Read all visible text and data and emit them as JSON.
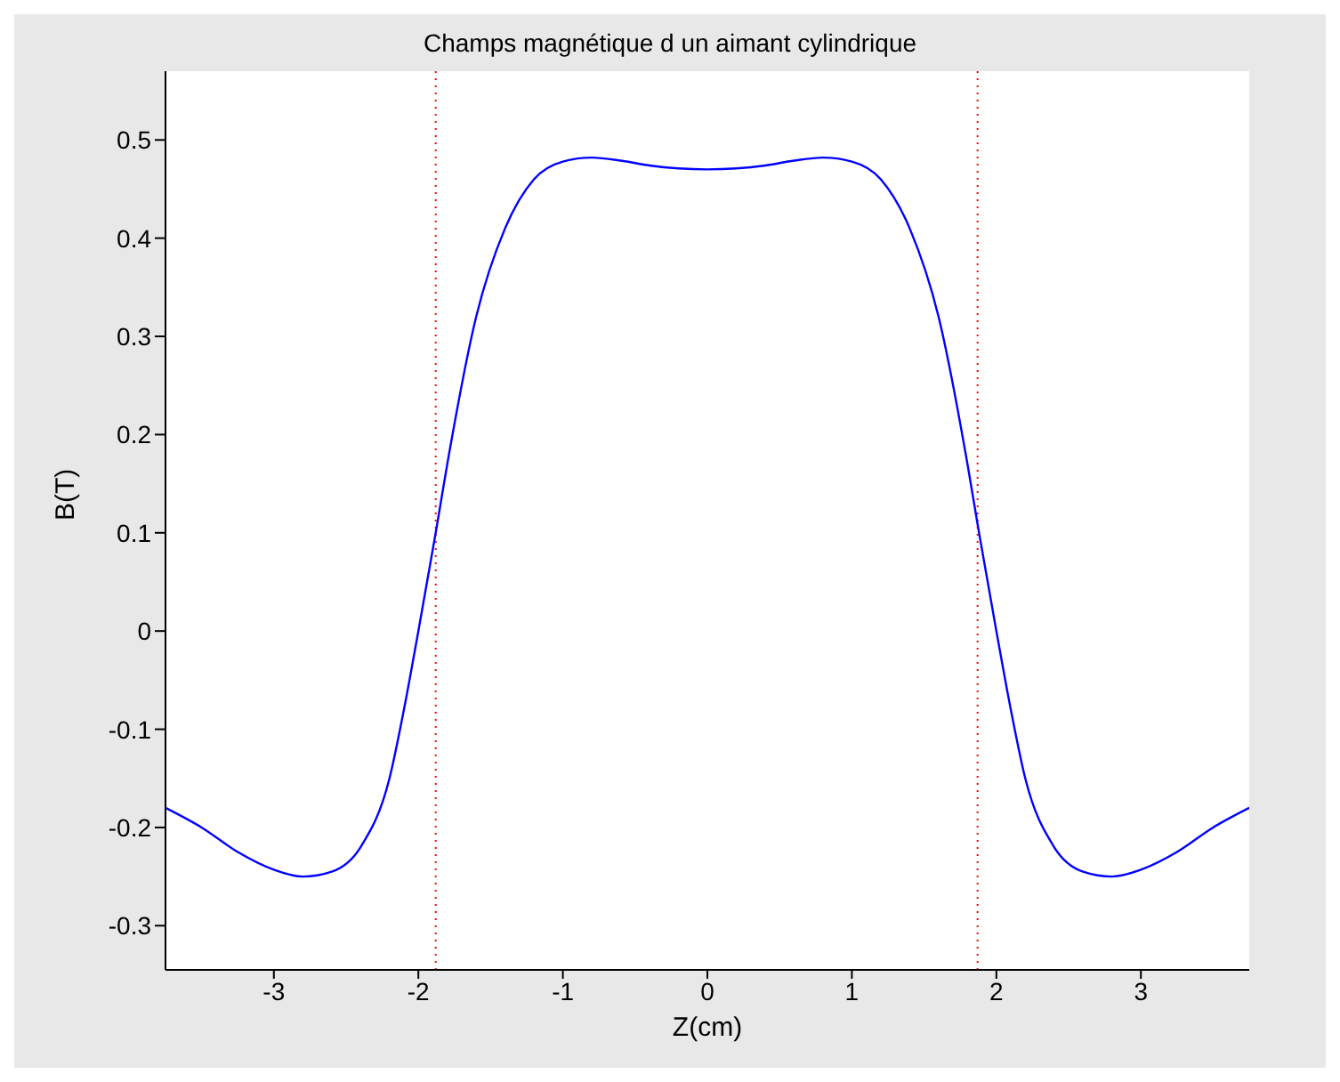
{
  "chart_data": {
    "type": "line",
    "title": "Champs magnétique d un aimant cylindrique",
    "xlabel": "Z(cm)",
    "ylabel": "B(T)",
    "x": [
      -3.75,
      -3.5,
      -3.25,
      -3,
      -2.8,
      -2.6,
      -2.4,
      -2.2,
      -2.1,
      -2,
      -1.88,
      -1.8,
      -1.6,
      -1.4,
      -1.2,
      -1,
      -0.8,
      -0.6,
      -0.4,
      -0.2,
      0,
      0.2,
      0.4,
      0.6,
      0.8,
      1,
      1.2,
      1.4,
      1.6,
      1.8,
      1.88,
      2,
      2.1,
      2.2,
      2.4,
      2.6,
      2.8,
      3,
      3.25,
      3.5,
      3.75
    ],
    "series": [
      {
        "color": "#0000ff",
        "values": [
          -0.18,
          -0.2,
          -0.225,
          -0.243,
          -0.25,
          -0.245,
          -0.22,
          -0.15,
          -0.08,
          0.0,
          0.1,
          0.17,
          0.32,
          0.41,
          0.46,
          0.478,
          0.482,
          0.479,
          0.474,
          0.471,
          0.47,
          0.471,
          0.474,
          0.479,
          0.482,
          0.478,
          0.46,
          0.41,
          0.32,
          0.17,
          0.1,
          0.0,
          -0.08,
          -0.15,
          -0.22,
          -0.245,
          -0.25,
          -0.243,
          -0.225,
          -0.2,
          -0.18
        ]
      }
    ],
    "xlim": [
      -3.75,
      3.75
    ],
    "xticks": [
      -3,
      -2,
      -1,
      0,
      1,
      2,
      3
    ],
    "ylim": [
      -0.345,
      0.57
    ],
    "yticks": [
      -0.3,
      -0.2,
      -0.1,
      0,
      0.1,
      0.2,
      0.3,
      0.4,
      0.5
    ],
    "ref_lines": [
      {
        "axis": "x",
        "value": -1.88,
        "color": "#ff0000",
        "line_style": "dotted"
      },
      {
        "axis": "x",
        "value": 1.87,
        "color": "#ff0000",
        "line_style": "dotted"
      }
    ],
    "grid": false,
    "marker": "none",
    "line_style": "solid"
  }
}
